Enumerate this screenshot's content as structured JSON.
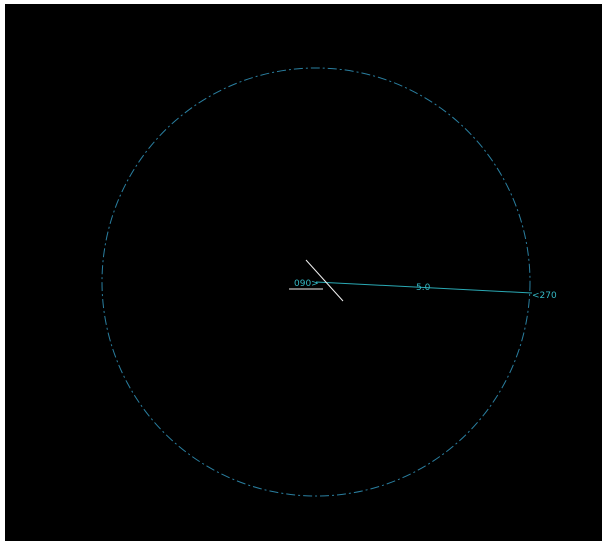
{
  "drawing": {
    "background_color": "#000000",
    "circle": {
      "color": "#2a7fa0",
      "line_style": "dash-dot"
    },
    "radius_line": {
      "color": "#2aa9b4",
      "dimension_text": "5.0"
    },
    "center_marker": {
      "color": "#f0f0f0",
      "label": "090>"
    },
    "edge_label": {
      "text": "<270"
    },
    "text_color": "#34b8c4"
  }
}
